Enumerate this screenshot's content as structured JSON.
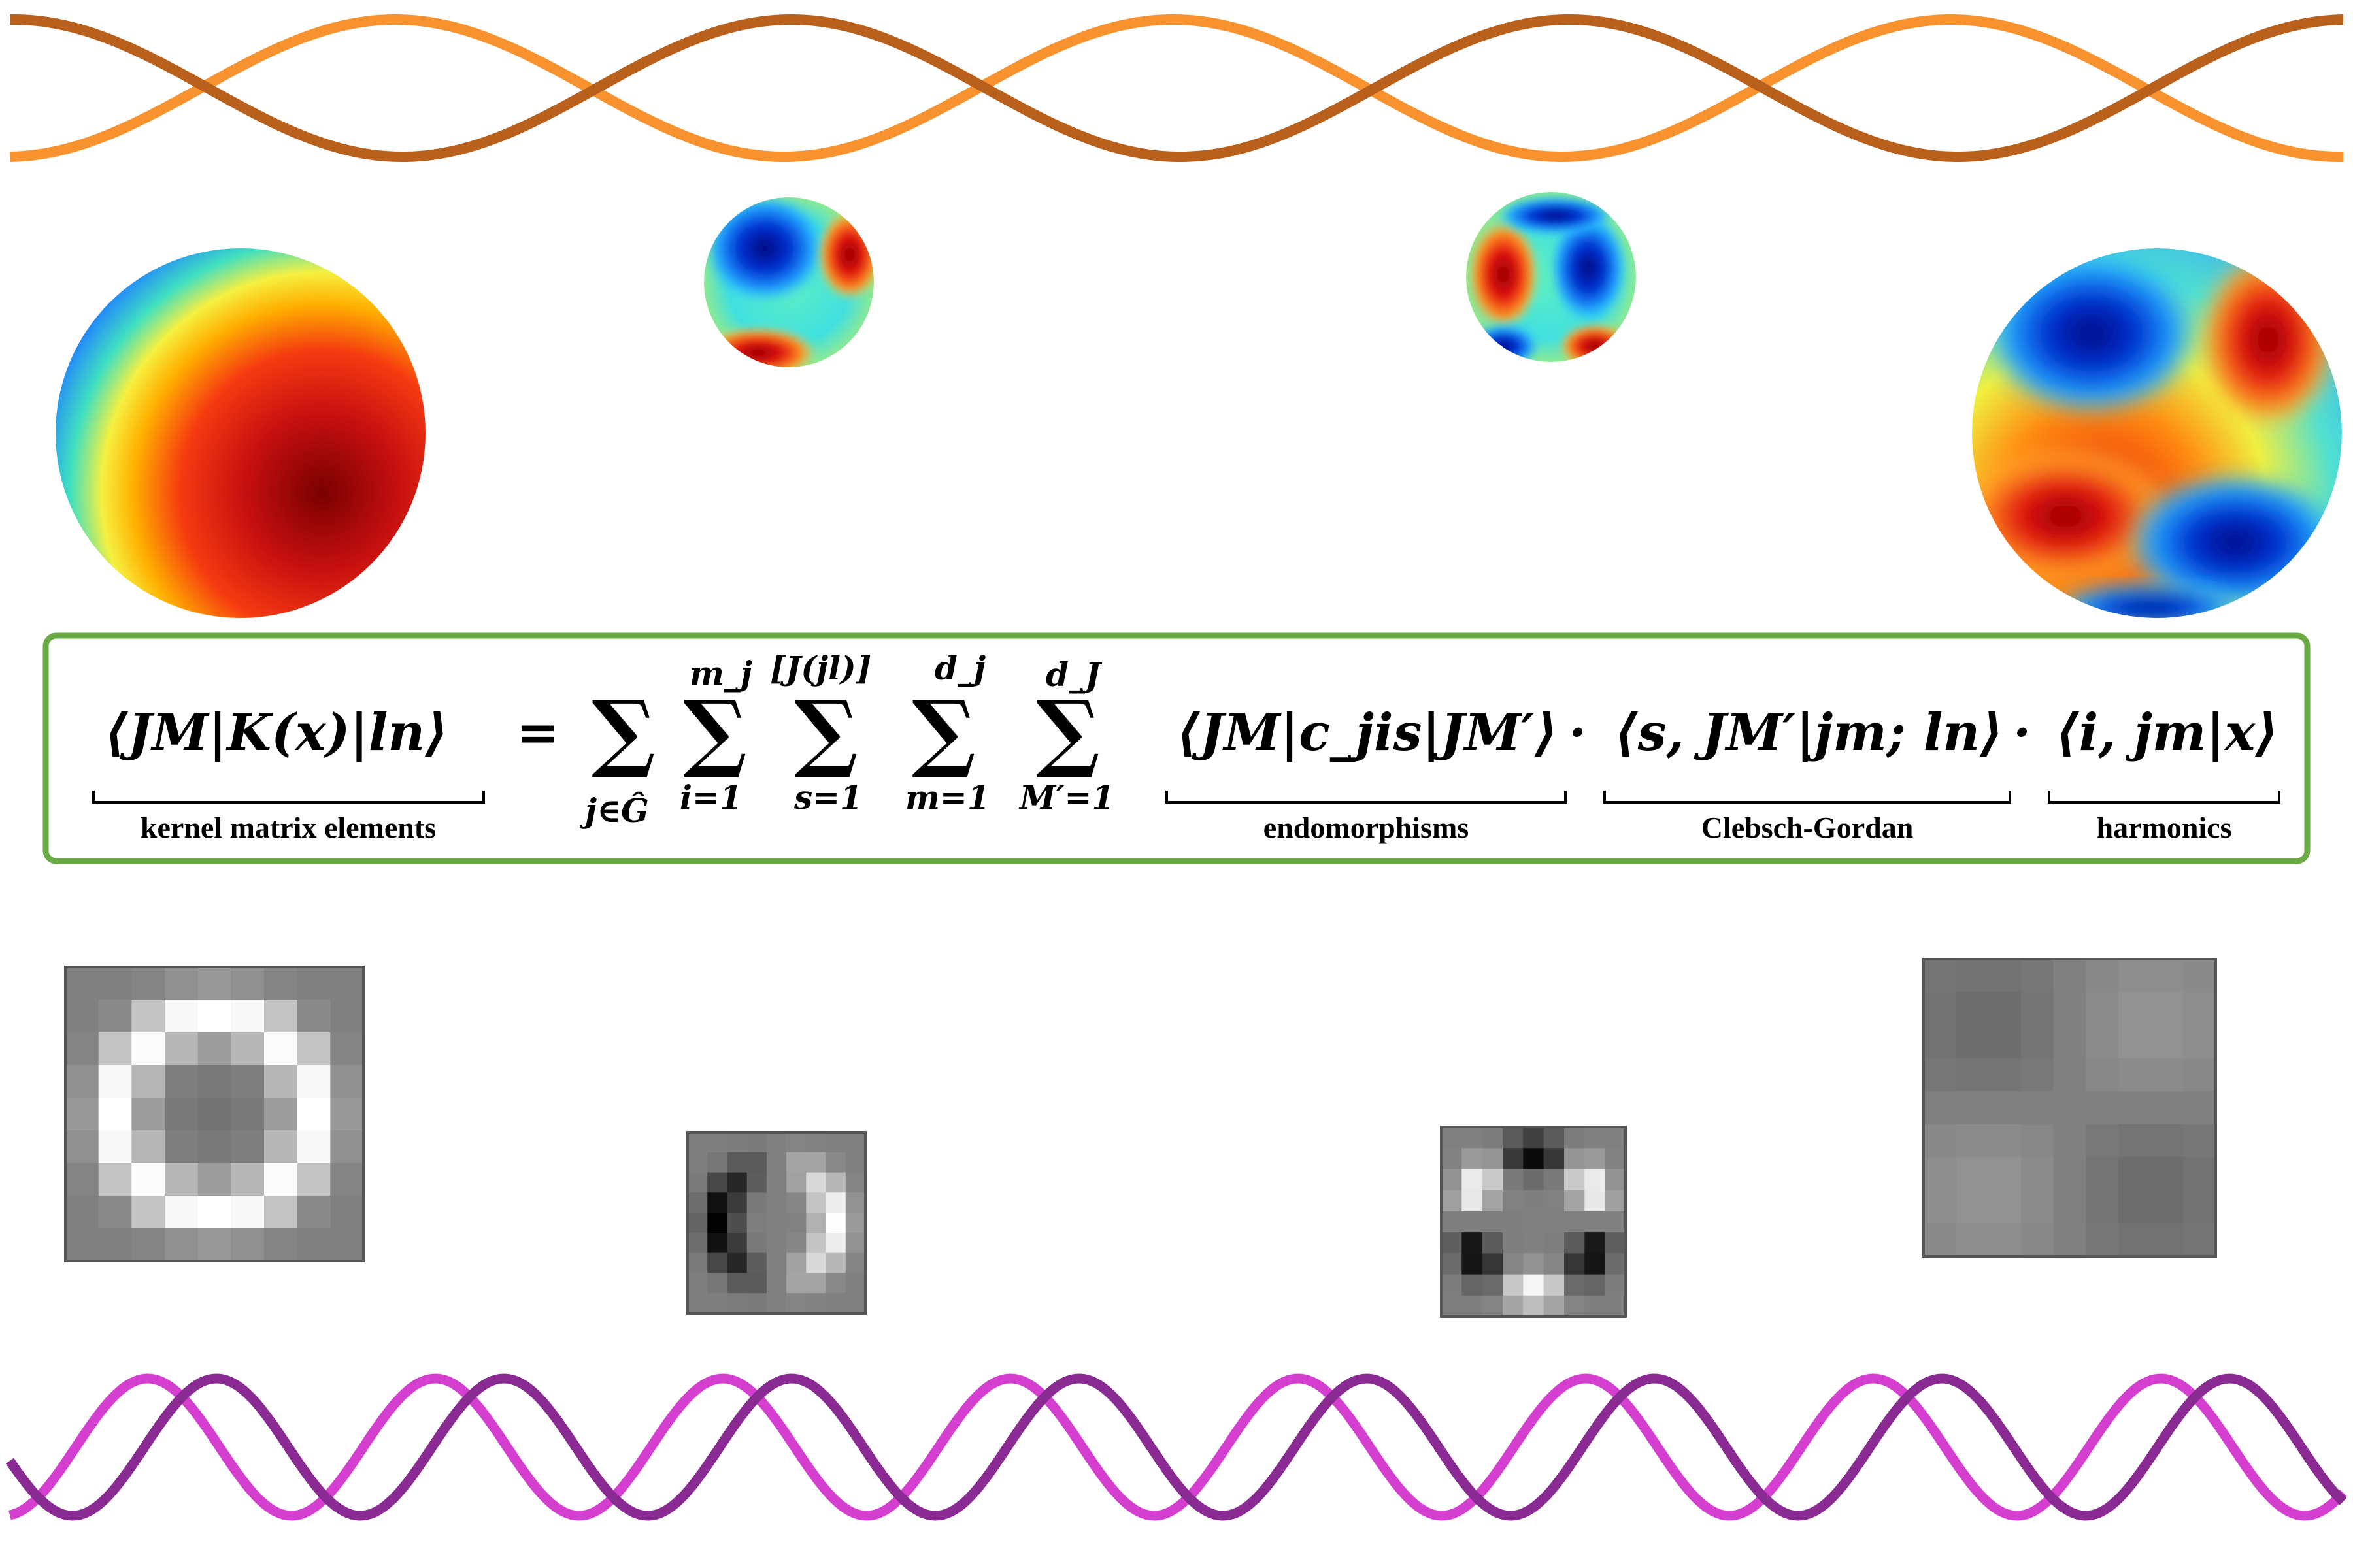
{
  "colors": {
    "wave_top_a": "#f7922e",
    "wave_top_b": "#b8601c",
    "wave_bottom_a": "#d43fcf",
    "wave_bottom_b": "#8a2a93",
    "formula_border": "#6aaa45"
  },
  "formula": {
    "lhs": "⟨JM|K(x)|ln⟩",
    "equals": "=",
    "sums": [
      {
        "upper": "",
        "lower": "j∈Ĝ"
      },
      {
        "upper": "m_j",
        "lower": "i=1"
      },
      {
        "upper": "[J(jl)]",
        "lower": "s=1"
      },
      {
        "upper": "d_j",
        "lower": "m=1"
      },
      {
        "upper": "d_J",
        "lower": "M′=1"
      }
    ],
    "term1": "⟨JM|c_jis|JM′⟩",
    "dot": "·",
    "term2": "⟨s, JM′|jm; ln⟩",
    "term3": "⟨i, jm|x⟩"
  },
  "labels": {
    "kernel": "kernel matrix elements",
    "endo": "endomorphisms",
    "cg": "Clebsch-Gordan",
    "harmonics": "harmonics"
  },
  "spheres": [
    "sphere-l1",
    "sphere-l2-a",
    "sphere-l2-b",
    "sphere-l3"
  ],
  "kernels": [
    "kernel-ring",
    "kernel-dipole",
    "kernel-quad",
    "kernel-tetra"
  ]
}
